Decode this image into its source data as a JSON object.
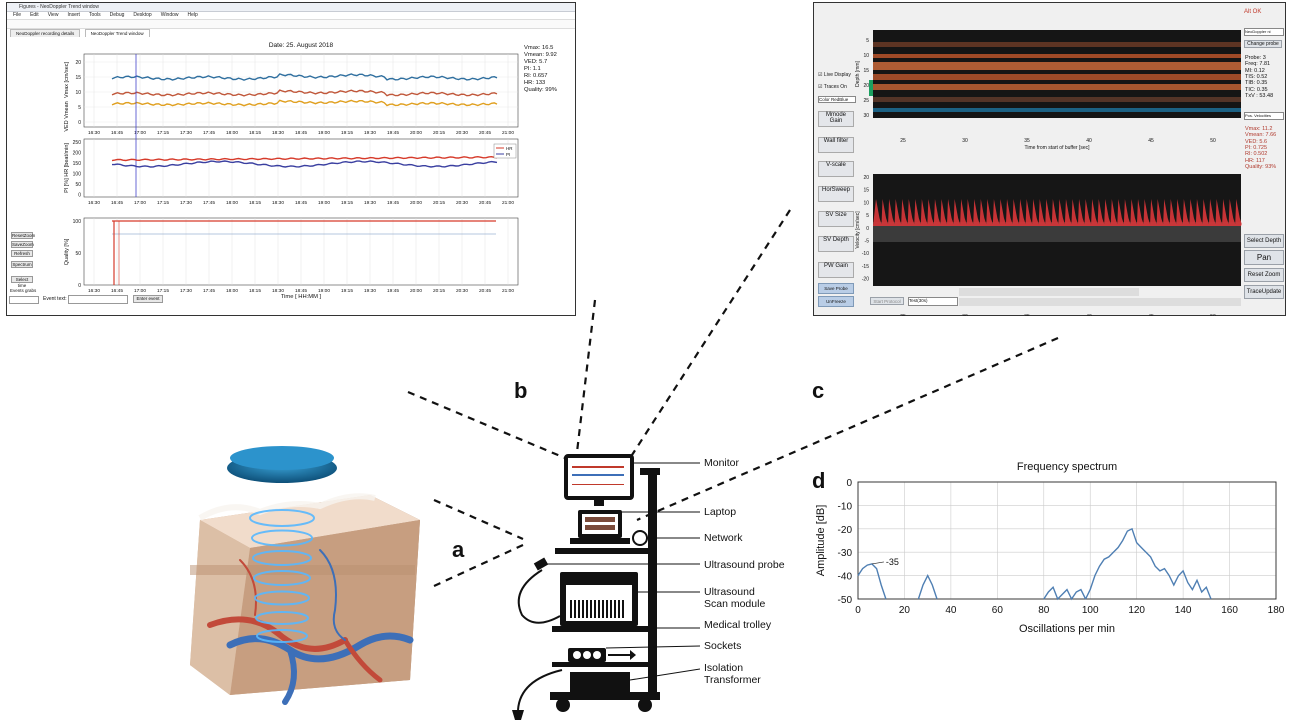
{
  "panel_b": {
    "window_title": "Figures - NeoDoppler Trend window",
    "menu": [
      "File",
      "Edit",
      "View",
      "Insert",
      "Tools",
      "Debug",
      "Desktop",
      "Window",
      "Help"
    ],
    "tabs": [
      "NeoDoppler recording details",
      "NeoDoppler Trend window"
    ],
    "date": "Date: 25. August 2018",
    "stats": [
      "Vmax:  16.5",
      "Vmean:  9.92",
      "VED:   5.7",
      "PI:    1.1",
      "RI:   0.657",
      "HR:    133",
      "Quality: 99%"
    ],
    "chart1_ylabel_top": "Vmax [cm/sec]",
    "chart1_ylabel_mid": "Vmean",
    "chart1_ylabel_bot": "VED",
    "chart1_yticks": [
      "20",
      "15",
      "10",
      "5",
      "0"
    ],
    "chart2_ylabel": "PI [%]  HR [beat/min]",
    "chart2_yticks": [
      "250",
      "200",
      "150",
      "100",
      "50",
      "0"
    ],
    "chart2_legend": [
      "HR",
      "PI"
    ],
    "chart3_ylabel": "Quality [%]",
    "chart3_yticks": [
      "100",
      "50",
      "0"
    ],
    "time_ticks": [
      "16:30",
      "16:45",
      "17:00",
      "17:15",
      "17:30",
      "17:45",
      "18:00",
      "18:15",
      "18:30",
      "18:45",
      "19:00",
      "19:15",
      "19:30",
      "19:45",
      "20:00",
      "20:15",
      "20:30",
      "20:45",
      "21:00"
    ],
    "xlabel": "Time [ HH:MM ]",
    "left_buttons": [
      "ResetZoom",
      "SaveZoom",
      "Refresh",
      "Spectrum",
      "Select time"
    ],
    "bottom_controls": {
      "events_label": "Events grabs",
      "event_text_label": "Event text:",
      "enter_event": "Enter event"
    }
  },
  "panel_c": {
    "status": "Alt OK",
    "left_controls": [
      "Live Display",
      "Traces On",
      "Color RedBlue",
      "Mmode Gain",
      "Wall filter",
      "V-scale",
      "HorSweep",
      "SV Size",
      "SV Depth",
      "PW Gain",
      "Save Probe",
      "UnFreeze"
    ],
    "probe_select": "NeoDoppler ni",
    "change_probe": "Change probe",
    "probe_info": [
      "Probe: 3",
      "Freq: 7.81",
      "MI:    0.12",
      "TIS:   0.52",
      "TIB:   0.35",
      "TIC:   0.35",
      "TxV : 53.48"
    ],
    "velocity_select": "Pos. Velocities",
    "stats": [
      "Vmax:   11.2",
      "Vmean:  7.66",
      "VED:    5.6",
      "PI:    0.725",
      "RI:    0.502",
      "HR:      117",
      "Quality:  93%"
    ],
    "right_buttons": [
      "Select Depth",
      "Pan",
      "Reset Zoom",
      "TraceUpdate"
    ],
    "mmode_ylabel": "Depth [mm]",
    "mmode_yticks": [
      "5",
      "10",
      "15",
      "20",
      "25",
      "30"
    ],
    "xticks": [
      "25",
      "30",
      "35",
      "40",
      "45",
      "50"
    ],
    "mmode_xlabel": "Time from start of buffer [sec]",
    "pw_ylabel": "Velocity [cm/sec]",
    "pw_yticks": [
      "20",
      "15",
      "10",
      "5",
      "0",
      "-5",
      "-10",
      "-15",
      "-20"
    ],
    "bottom": {
      "start_protocol": "Start Protocol",
      "test_select": "Test(30s)"
    }
  },
  "labels": {
    "a": "a",
    "b": "b",
    "c": "c",
    "d": "d"
  },
  "callouts": [
    "Monitor",
    "Laptop",
    "Network",
    "Ultrasound probe",
    "Ultrasound\nScan module",
    "Medical trolley",
    "Sockets",
    "Isolation\nTransformer"
  ],
  "chart_data": {
    "type": "line",
    "title": "Frequency spectrum",
    "xlabel": "Oscillations per min",
    "ylabel": "Amplitude [dB]",
    "xlim": [
      0,
      180
    ],
    "ylim": [
      -50,
      0
    ],
    "xticks": [
      0,
      20,
      40,
      60,
      80,
      100,
      120,
      140,
      160,
      180
    ],
    "yticks": [
      0,
      -10,
      -20,
      -30,
      -40,
      -50
    ],
    "grid": true,
    "annotation": {
      "x": 6,
      "y": -35,
      "text": "-35"
    },
    "series": [
      {
        "x": [
          0,
          2,
          4,
          6,
          8,
          10,
          12
        ],
        "y": [
          -40,
          -37,
          -35.5,
          -35,
          -37,
          -44,
          -50
        ]
      },
      {
        "x": [
          26,
          28,
          30,
          32,
          34
        ],
        "y": [
          -50,
          -44,
          -40,
          -44,
          -50
        ]
      },
      {
        "x": [
          80,
          82,
          84,
          86,
          88,
          90,
          92,
          94,
          96,
          98
        ],
        "y": [
          -50,
          -47,
          -45,
          -50,
          -48,
          -46,
          -50,
          -47,
          -46,
          -50
        ]
      },
      {
        "x": [
          98,
          100,
          102,
          104,
          106,
          108,
          110,
          112,
          114,
          116,
          118,
          120,
          122,
          124,
          126,
          128,
          130,
          132,
          134,
          136,
          138,
          140,
          142,
          144,
          146,
          148,
          150,
          152
        ],
        "y": [
          -50,
          -46,
          -40,
          -36,
          -33,
          -32,
          -30,
          -28,
          -25,
          -21,
          -20,
          -26,
          -28,
          -30,
          -32,
          -36,
          -38,
          -37,
          -40,
          -44,
          -40,
          -38,
          -43,
          -46,
          -42,
          -47,
          -45,
          -50
        ]
      }
    ],
    "color": "#4f7fb3"
  }
}
